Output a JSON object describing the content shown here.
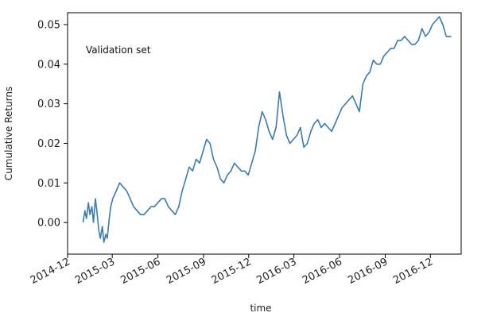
{
  "chart_data": {
    "type": "line",
    "title": "",
    "annotation": "Validation set",
    "xlabel": "time",
    "ylabel": "Cumulative Returns",
    "xlim": [
      "2014-12-01",
      "2017-02-01"
    ],
    "ylim": [
      -0.008,
      0.053
    ],
    "x_ticks": [
      "2014-12",
      "2015-03",
      "2015-06",
      "2015-09",
      "2015-12",
      "2016-03",
      "2016-06",
      "2016-09",
      "2016-12"
    ],
    "y_ticks": [
      0.0,
      0.01,
      0.02,
      0.03,
      0.04,
      0.05
    ],
    "y_tick_labels": [
      "0.00",
      "0.01",
      "0.02",
      "0.03",
      "0.04",
      "0.05"
    ],
    "grid": false,
    "legend": "none",
    "series": [
      {
        "color": "#3b7bb0",
        "x": [
          "2015-01-01",
          "2015-01-05",
          "2015-01-08",
          "2015-01-12",
          "2015-01-15",
          "2015-01-19",
          "2015-01-22",
          "2015-01-26",
          "2015-01-29",
          "2015-02-02",
          "2015-02-05",
          "2015-02-09",
          "2015-02-12",
          "2015-02-16",
          "2015-02-19",
          "2015-02-23",
          "2015-02-26",
          "2015-03-02",
          "2015-03-09",
          "2015-03-16",
          "2015-03-23",
          "2015-03-30",
          "2015-04-06",
          "2015-04-13",
          "2015-04-20",
          "2015-04-27",
          "2015-05-04",
          "2015-05-11",
          "2015-05-18",
          "2015-05-25",
          "2015-06-01",
          "2015-06-08",
          "2015-06-15",
          "2015-06-22",
          "2015-06-29",
          "2015-07-06",
          "2015-07-13",
          "2015-07-20",
          "2015-07-27",
          "2015-08-03",
          "2015-08-10",
          "2015-08-17",
          "2015-08-24",
          "2015-08-31",
          "2015-09-07",
          "2015-09-14",
          "2015-09-21",
          "2015-09-28",
          "2015-10-05",
          "2015-10-12",
          "2015-10-19",
          "2015-10-26",
          "2015-11-02",
          "2015-11-09",
          "2015-11-16",
          "2015-11-23",
          "2015-11-30",
          "2015-12-07",
          "2015-12-14",
          "2015-12-21",
          "2015-12-28",
          "2016-01-04",
          "2016-01-11",
          "2016-01-18",
          "2016-01-25",
          "2016-02-01",
          "2016-02-08",
          "2016-02-15",
          "2016-02-22",
          "2016-02-29",
          "2016-03-07",
          "2016-03-14",
          "2016-03-21",
          "2016-03-28",
          "2016-04-04",
          "2016-04-11",
          "2016-04-18",
          "2016-04-25",
          "2016-05-02",
          "2016-05-09",
          "2016-05-16",
          "2016-05-23",
          "2016-05-30",
          "2016-06-06",
          "2016-06-13",
          "2016-06-20",
          "2016-06-27",
          "2016-07-04",
          "2016-07-11",
          "2016-07-18",
          "2016-07-25",
          "2016-08-01",
          "2016-08-08",
          "2016-08-15",
          "2016-08-22",
          "2016-08-29",
          "2016-09-05",
          "2016-09-12",
          "2016-09-19",
          "2016-09-26",
          "2016-10-03",
          "2016-10-10",
          "2016-10-17",
          "2016-10-24",
          "2016-10-31",
          "2016-11-07",
          "2016-11-14",
          "2016-11-21",
          "2016-11-28",
          "2016-12-05",
          "2016-12-12",
          "2016-12-19",
          "2016-12-26",
          "2017-01-02",
          "2017-01-09",
          "2017-01-12"
        ],
        "y": [
          0.0,
          0.003,
          0.001,
          0.005,
          0.002,
          0.004,
          0.0,
          0.006,
          0.003,
          -0.002,
          -0.004,
          -0.001,
          -0.005,
          -0.003,
          -0.004,
          0.001,
          0.004,
          0.006,
          0.008,
          0.01,
          0.009,
          0.008,
          0.006,
          0.004,
          0.003,
          0.002,
          0.002,
          0.003,
          0.004,
          0.004,
          0.005,
          0.006,
          0.006,
          0.004,
          0.003,
          0.002,
          0.004,
          0.008,
          0.011,
          0.014,
          0.013,
          0.016,
          0.015,
          0.018,
          0.021,
          0.02,
          0.016,
          0.014,
          0.011,
          0.01,
          0.012,
          0.013,
          0.015,
          0.014,
          0.013,
          0.013,
          0.012,
          0.015,
          0.018,
          0.024,
          0.028,
          0.026,
          0.023,
          0.021,
          0.024,
          0.033,
          0.027,
          0.022,
          0.02,
          0.021,
          0.022,
          0.024,
          0.019,
          0.02,
          0.023,
          0.025,
          0.026,
          0.024,
          0.025,
          0.024,
          0.023,
          0.025,
          0.027,
          0.029,
          0.03,
          0.031,
          0.032,
          0.03,
          0.028,
          0.035,
          0.037,
          0.038,
          0.041,
          0.04,
          0.04,
          0.042,
          0.043,
          0.044,
          0.044,
          0.046,
          0.046,
          0.047,
          0.046,
          0.045,
          0.045,
          0.046,
          0.049,
          0.047,
          0.048,
          0.05,
          0.051,
          0.052,
          0.05,
          0.047,
          0.047,
          0.047
        ]
      }
    ]
  }
}
